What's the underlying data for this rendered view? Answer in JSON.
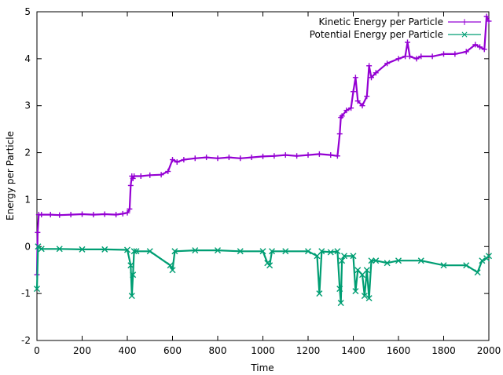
{
  "chart_data": {
    "type": "line",
    "title": "",
    "xlabel": "Time",
    "ylabel": "Energy per Particle",
    "xlim": [
      0,
      2000
    ],
    "ylim": [
      -2,
      5
    ],
    "xticks": [
      "0",
      "200",
      "400",
      "600",
      "800",
      "1000",
      "1200",
      "1400",
      "1600",
      "1800",
      "2000"
    ],
    "yticks": [
      "-2",
      "-1",
      "0",
      "1",
      "2",
      "3",
      "4",
      "5"
    ],
    "grid": false,
    "legend_position": "top-right",
    "series": [
      {
        "name": "Kinetic Energy per Particle",
        "color": "#9400d3",
        "marker": "plus",
        "x": [
          0,
          3,
          8,
          20,
          60,
          100,
          150,
          200,
          250,
          300,
          350,
          380,
          400,
          410,
          415,
          420,
          425,
          430,
          460,
          500,
          550,
          580,
          600,
          620,
          650,
          700,
          750,
          800,
          850,
          900,
          950,
          1000,
          1050,
          1100,
          1150,
          1200,
          1250,
          1300,
          1330,
          1340,
          1345,
          1350,
          1370,
          1390,
          1400,
          1410,
          1420,
          1440,
          1460,
          1470,
          1480,
          1500,
          1550,
          1600,
          1630,
          1640,
          1650,
          1680,
          1700,
          1750,
          1800,
          1850,
          1900,
          1940,
          1960,
          1980,
          1990,
          2000
        ],
        "y": [
          -0.6,
          0.3,
          0.68,
          0.68,
          0.68,
          0.67,
          0.68,
          0.69,
          0.68,
          0.69,
          0.68,
          0.7,
          0.72,
          0.8,
          1.3,
          1.5,
          1.45,
          1.5,
          1.5,
          1.52,
          1.53,
          1.6,
          1.85,
          1.8,
          1.85,
          1.88,
          1.9,
          1.88,
          1.9,
          1.88,
          1.9,
          1.92,
          1.93,
          1.95,
          1.93,
          1.95,
          1.97,
          1.95,
          1.93,
          2.4,
          2.75,
          2.78,
          2.9,
          2.95,
          3.3,
          3.6,
          3.1,
          3.0,
          3.2,
          3.85,
          3.6,
          3.7,
          3.9,
          4.0,
          4.05,
          4.35,
          4.05,
          4.0,
          4.05,
          4.05,
          4.1,
          4.1,
          4.15,
          4.3,
          4.25,
          4.2,
          4.9,
          4.8
        ]
      },
      {
        "name": "Potential Energy per Particle",
        "color": "#009e73",
        "marker": "cross",
        "x": [
          0,
          5,
          20,
          100,
          200,
          300,
          400,
          415,
          420,
          425,
          430,
          440,
          500,
          590,
          600,
          610,
          700,
          800,
          900,
          1000,
          1020,
          1030,
          1040,
          1100,
          1200,
          1240,
          1250,
          1260,
          1300,
          1330,
          1340,
          1345,
          1350,
          1360,
          1400,
          1410,
          1420,
          1440,
          1450,
          1460,
          1470,
          1480,
          1500,
          1550,
          1600,
          1700,
          1800,
          1900,
          1950,
          1970,
          1990,
          2000
        ],
        "y": [
          -0.9,
          0.0,
          -0.05,
          -0.05,
          -0.06,
          -0.06,
          -0.07,
          -0.4,
          -1.05,
          -0.6,
          -0.1,
          -0.1,
          -0.1,
          -0.4,
          -0.5,
          -0.1,
          -0.08,
          -0.08,
          -0.1,
          -0.1,
          -0.35,
          -0.4,
          -0.1,
          -0.1,
          -0.1,
          -0.2,
          -1.0,
          -0.1,
          -0.12,
          -0.1,
          -0.9,
          -1.2,
          -0.3,
          -0.2,
          -0.2,
          -0.95,
          -0.5,
          -0.6,
          -1.05,
          -0.5,
          -1.1,
          -0.3,
          -0.3,
          -0.35,
          -0.3,
          -0.3,
          -0.4,
          -0.4,
          -0.55,
          -0.3,
          -0.25,
          -0.2
        ]
      }
    ]
  }
}
